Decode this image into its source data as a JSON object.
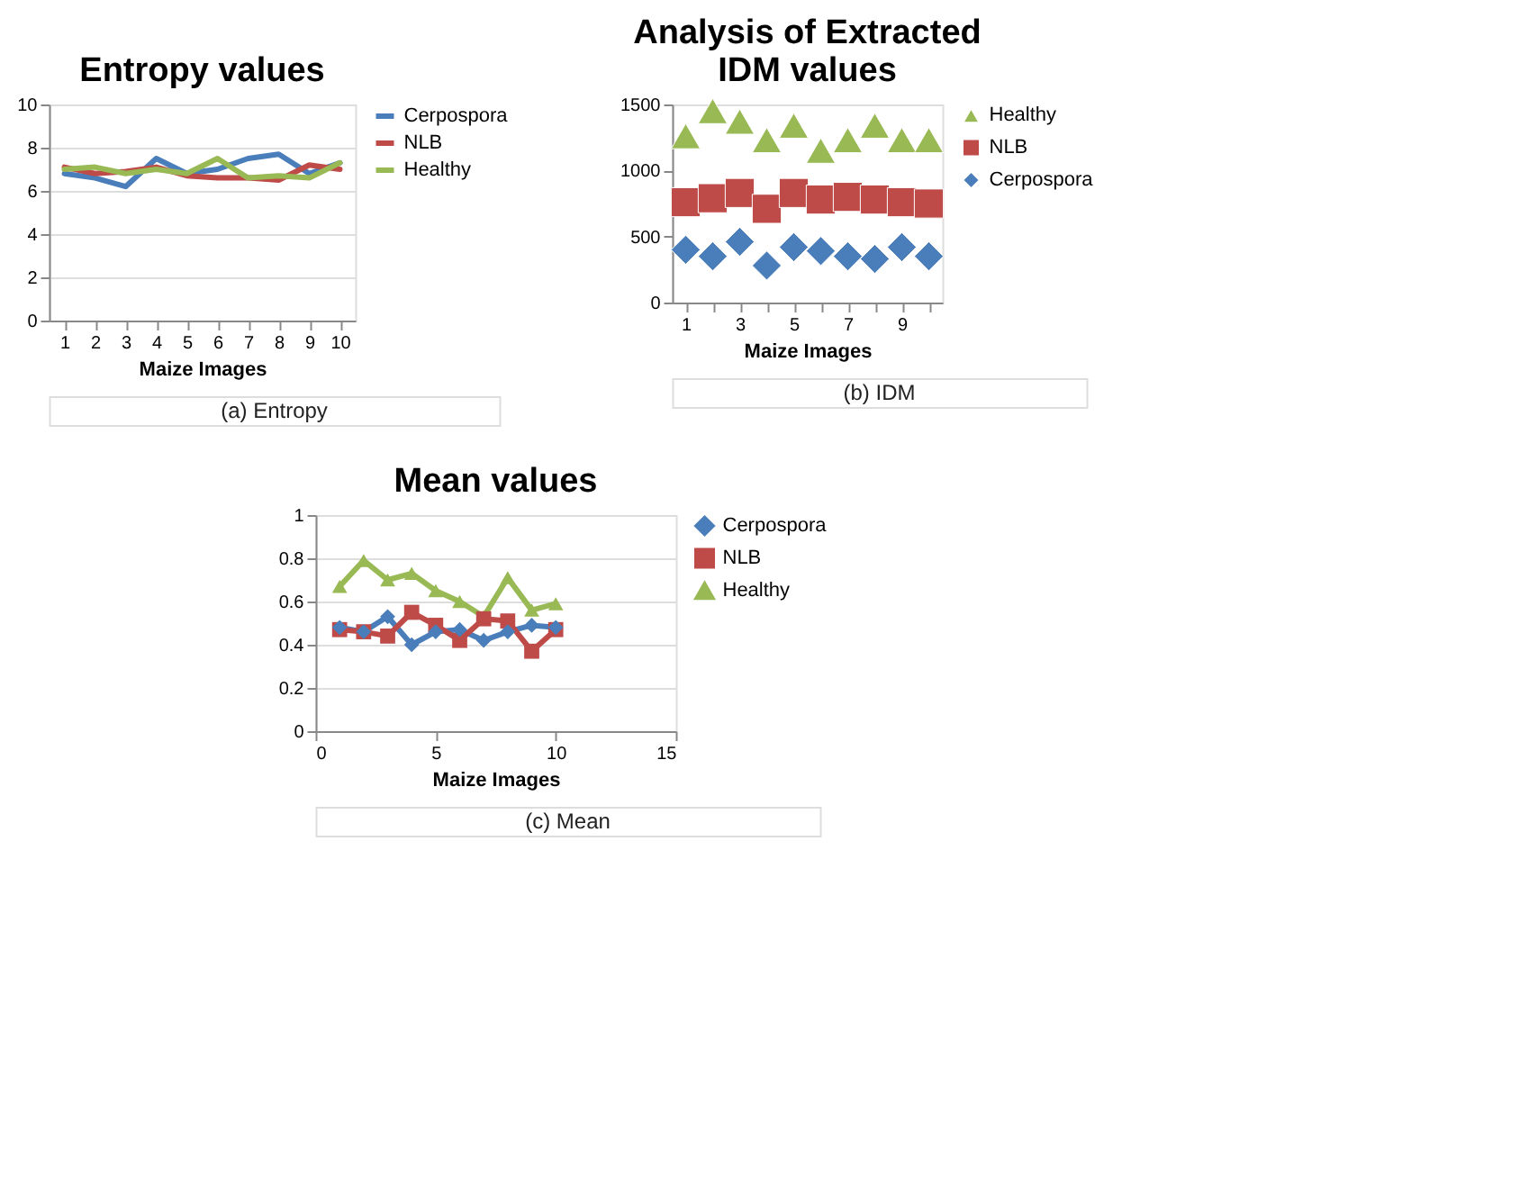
{
  "chart_data": [
    {
      "type": "line",
      "title": "Entropy values",
      "xlabel": "Maize Images",
      "categories": [
        "1",
        "2",
        "3",
        "4",
        "5",
        "6",
        "7",
        "8",
        "9",
        "10"
      ],
      "ylim": [
        0,
        10
      ],
      "yticks": [
        0,
        2,
        4,
        6,
        8,
        10
      ],
      "grid": "y",
      "legend": "right",
      "annotations": [
        "(a) Entropy"
      ],
      "series": [
        {
          "name": "Cerpospora",
          "color": "#4a7ebb",
          "values": [
            6.8,
            6.6,
            6.2,
            7.5,
            6.8,
            7.0,
            7.5,
            7.7,
            6.8,
            7.3
          ]
        },
        {
          "name": "NLB",
          "color": "#be4b48",
          "values": [
            7.1,
            6.8,
            6.9,
            7.1,
            6.7,
            6.6,
            6.6,
            6.5,
            7.2,
            7.0
          ]
        },
        {
          "name": "Healthy",
          "color": "#98b954",
          "values": [
            7.0,
            7.1,
            6.8,
            7.0,
            6.8,
            7.5,
            6.6,
            6.7,
            6.6,
            7.3
          ]
        }
      ]
    },
    {
      "type": "scatter",
      "title": "Analysis of Extracted IDM values",
      "xlabel": "Maize Images",
      "categories": [
        "1",
        null,
        "3",
        null,
        "5",
        null,
        "7",
        null,
        "9",
        null
      ],
      "ylim": [
        0,
        1500
      ],
      "yticks": [
        0,
        500,
        1000,
        1500
      ],
      "grid": false,
      "legend": "right",
      "annotations": [
        "(b) IDM"
      ],
      "series": [
        {
          "name": "Healthy",
          "color": "#98b954",
          "marker": "triangle",
          "values": [
            1260,
            1450,
            1370,
            1230,
            1340,
            1150,
            1230,
            1340,
            1230,
            1230
          ]
        },
        {
          "name": "NLB",
          "color": "#be4b48",
          "marker": "square",
          "values": [
            760,
            790,
            830,
            710,
            830,
            780,
            800,
            780,
            760,
            750
          ]
        },
        {
          "name": "Cerpospora",
          "color": "#4a7ebb",
          "marker": "diamond",
          "values": [
            400,
            350,
            460,
            280,
            420,
            390,
            350,
            330,
            420,
            350
          ]
        }
      ]
    },
    {
      "type": "line",
      "title": "Mean values",
      "xlabel": "Maize Images",
      "x": [
        1,
        2,
        3,
        4,
        5,
        6,
        7,
        8,
        9,
        10
      ],
      "xlim": [
        0,
        15
      ],
      "xticks": [
        0,
        5,
        10,
        15
      ],
      "ylim": [
        0,
        1
      ],
      "yticks": [
        0,
        0.2,
        0.4,
        0.6,
        0.8,
        1
      ],
      "grid": "y",
      "legend": "right",
      "annotations": [
        "(c) Mean"
      ],
      "series": [
        {
          "name": "Cerpospora",
          "color": "#4a7ebb",
          "marker": "diamond",
          "values": [
            0.48,
            0.46,
            0.53,
            0.4,
            0.46,
            0.47,
            0.42,
            0.46,
            0.49,
            0.48
          ]
        },
        {
          "name": "NLB",
          "color": "#be4b48",
          "marker": "square",
          "values": [
            0.47,
            0.46,
            0.44,
            0.55,
            0.49,
            0.42,
            0.52,
            0.51,
            0.37,
            0.47
          ]
        },
        {
          "name": "Healthy",
          "color": "#98b954",
          "marker": "triangle",
          "values": [
            0.67,
            0.79,
            0.7,
            0.73,
            0.65,
            0.6,
            0.53,
            0.71,
            0.56,
            0.59
          ]
        }
      ]
    }
  ]
}
